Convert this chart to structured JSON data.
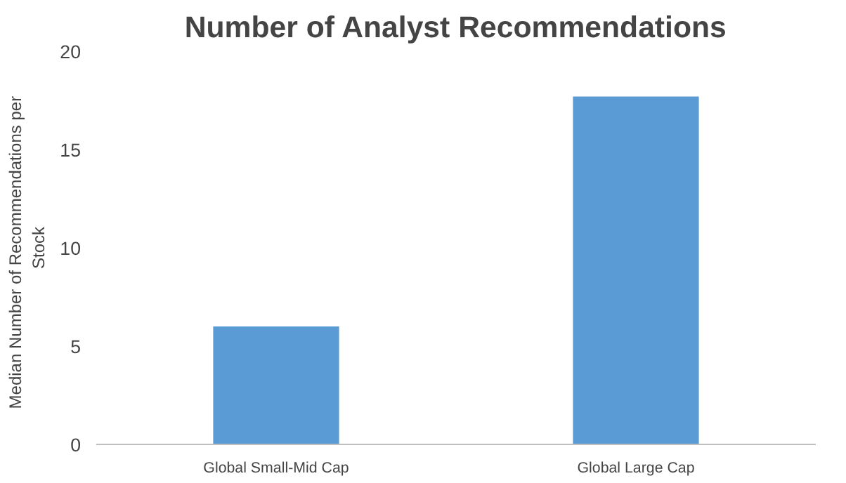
{
  "chart_data": {
    "type": "bar",
    "title": "Number of Analyst Recommendations",
    "ylabel": "Median Number  of Recommendations  per Stock",
    "categories": [
      "Global Small-Mid Cap",
      "Global Large Cap"
    ],
    "values": [
      6.0,
      17.7
    ],
    "color": "#5b9bd5",
    "ylim": [
      0,
      20
    ],
    "yticks": [
      0,
      5,
      10,
      15,
      20
    ],
    "grid": false
  }
}
